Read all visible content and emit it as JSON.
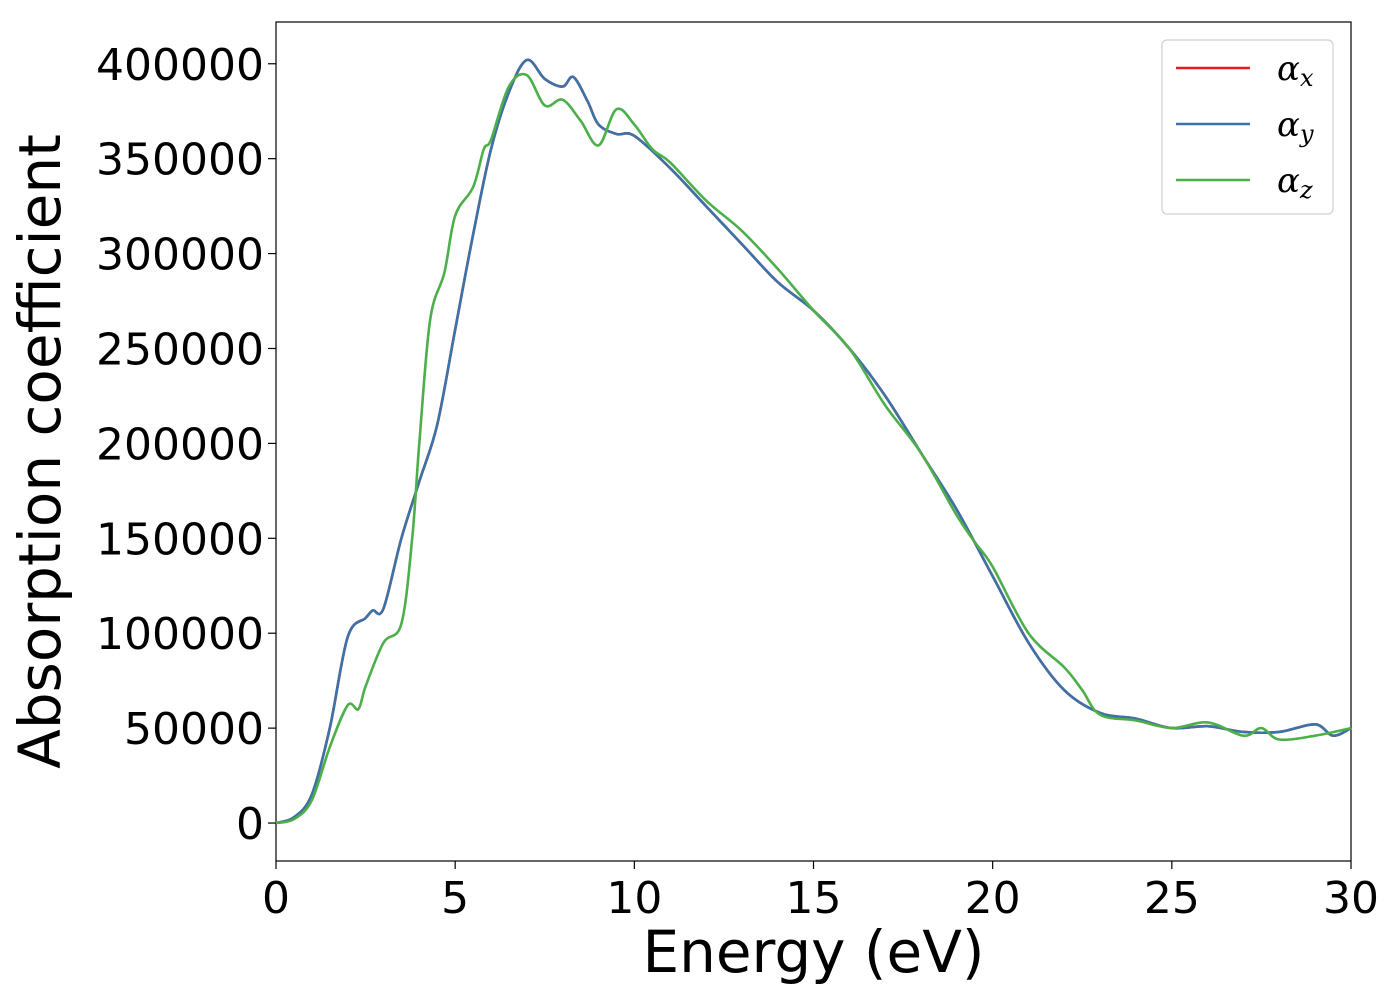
{
  "chart_data": {
    "type": "line",
    "xlabel": "Energy (eV)",
    "ylabel": "Absorption coefficient",
    "xlim": [
      0,
      30
    ],
    "ylim": [
      -20000,
      422000
    ],
    "xticks": [
      0,
      5,
      10,
      15,
      20,
      25,
      30
    ],
    "yticks": [
      0,
      50000,
      100000,
      150000,
      200000,
      250000,
      300000,
      350000,
      400000
    ],
    "grid": false,
    "legend_position": "top-right",
    "series": [
      {
        "name": "α",
        "subscript": "x",
        "color": "#e41a1c",
        "x": [
          0,
          0.5,
          1,
          1.5,
          2,
          2.5,
          2.7,
          3,
          3.5,
          4,
          4.5,
          5,
          5.5,
          6,
          6.5,
          7,
          7.5,
          8,
          8.3,
          8.7,
          9,
          9.5,
          10,
          11,
          12,
          13,
          14,
          15,
          16,
          17,
          18,
          19,
          20,
          21,
          22,
          23,
          24,
          25,
          26,
          27,
          28,
          29,
          29.5,
          30
        ],
        "y": [
          0,
          3000,
          15000,
          50000,
          98000,
          108000,
          112000,
          113000,
          150000,
          180000,
          210000,
          260000,
          310000,
          355000,
          385000,
          402000,
          392000,
          388000,
          393000,
          380000,
          368000,
          363000,
          362000,
          345000,
          325000,
          305000,
          285000,
          270000,
          250000,
          225000,
          195000,
          165000,
          130000,
          95000,
          70000,
          58000,
          55000,
          50000,
          51000,
          48000,
          48000,
          52000,
          46000,
          50000
        ]
      },
      {
        "name": "α",
        "subscript": "y",
        "color": "#3b72a8",
        "x": [
          0,
          0.5,
          1,
          1.5,
          2,
          2.5,
          2.7,
          3,
          3.5,
          4,
          4.5,
          5,
          5.5,
          6,
          6.5,
          7,
          7.5,
          8,
          8.3,
          8.7,
          9,
          9.5,
          10,
          11,
          12,
          13,
          14,
          15,
          16,
          17,
          18,
          19,
          20,
          21,
          22,
          23,
          24,
          25,
          26,
          27,
          28,
          29,
          29.5,
          30
        ],
        "y": [
          0,
          3000,
          15000,
          50000,
          98000,
          108000,
          112000,
          113000,
          150000,
          180000,
          210000,
          260000,
          310000,
          355000,
          385000,
          402000,
          392000,
          388000,
          393000,
          380000,
          368000,
          363000,
          362000,
          345000,
          325000,
          305000,
          285000,
          270000,
          250000,
          225000,
          195000,
          165000,
          130000,
          95000,
          70000,
          58000,
          55000,
          50000,
          51000,
          48000,
          48000,
          52000,
          46000,
          50000
        ]
      },
      {
        "name": "α",
        "subscript": "z",
        "color": "#4daf4a",
        "x": [
          0,
          0.5,
          1,
          1.5,
          2,
          2.3,
          2.5,
          3,
          3.5,
          3.8,
          4,
          4.3,
          4.7,
          5,
          5.5,
          5.8,
          6,
          6.5,
          7,
          7.5,
          8,
          8.5,
          9,
          9.5,
          10,
          10.5,
          11,
          12,
          13,
          14,
          15,
          16,
          17,
          18,
          19,
          19.5,
          20,
          21,
          22,
          22.5,
          23,
          24,
          25,
          26,
          27,
          27.5,
          28,
          29,
          30
        ],
        "y": [
          0,
          2000,
          12000,
          40000,
          62000,
          60000,
          72000,
          95000,
          105000,
          150000,
          200000,
          265000,
          290000,
          320000,
          335000,
          355000,
          360000,
          388000,
          394000,
          378000,
          381000,
          370000,
          357000,
          376000,
          368000,
          355000,
          348000,
          328000,
          312000,
          292000,
          270000,
          250000,
          220000,
          195000,
          162000,
          148000,
          135000,
          100000,
          82000,
          70000,
          57000,
          54000,
          50000,
          53000,
          46000,
          50000,
          44000,
          46000,
          50000
        ]
      }
    ]
  }
}
